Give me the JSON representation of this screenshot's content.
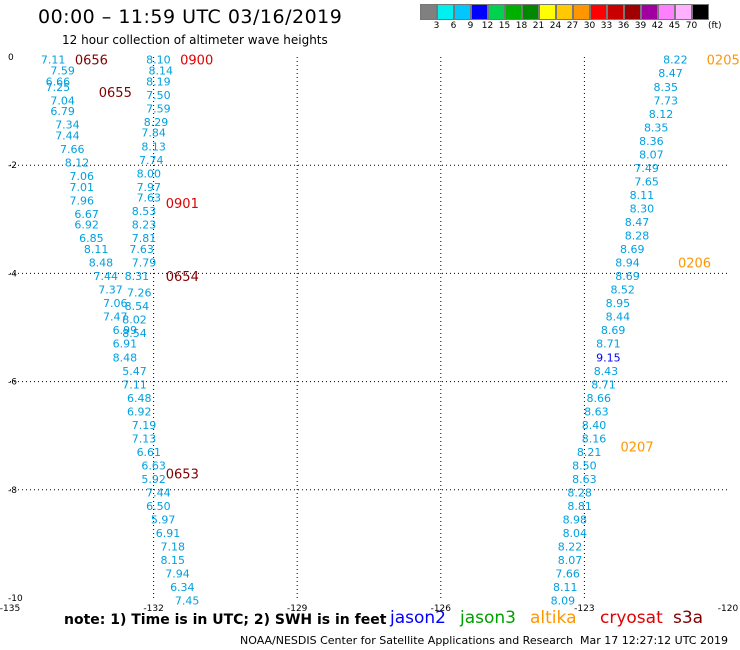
{
  "header": {
    "title": "00:00 – 11:59 UTC 03/16/2019",
    "subtitle": "12 hour collection of altimeter wave heights"
  },
  "colorbar": {
    "labels": [
      "3",
      "6",
      "9",
      "12",
      "15",
      "18",
      "21",
      "24",
      "27",
      "30",
      "33",
      "36",
      "39",
      "42",
      "45",
      "70"
    ],
    "unit": "(ft)",
    "colors": [
      "#808080",
      "#00f0f0",
      "#00c8ff",
      "#0000ff",
      "#00d250",
      "#00b000",
      "#008800",
      "#ffff00",
      "#ffc800",
      "#ff9600",
      "#ff0000",
      "#c80000",
      "#a00000",
      "#a000a0",
      "#ff80ff",
      "#ffb0ff",
      "#000000"
    ]
  },
  "axes": {
    "x_ticks": [
      "-135",
      "-132",
      "-129",
      "-126",
      "-123",
      "-120"
    ],
    "y_ticks": [
      "0",
      "-2",
      "-4",
      "-6",
      "-8",
      "-10"
    ]
  },
  "map_data": {
    "lon_range": [
      -135,
      -120
    ],
    "lat_range": [
      -10,
      0
    ],
    "tracks": [
      {
        "color": "#00a0e0",
        "points": [
          {
            "lon": -134.1,
            "lat": -0.05,
            "v": "7.11"
          },
          {
            "lon": -133.9,
            "lat": -0.25,
            "v": "7.59"
          },
          {
            "lon": -134.0,
            "lat": -0.45,
            "v": "6.66"
          },
          {
            "lon": -134.0,
            "lat": -0.55,
            "v": "7.25"
          },
          {
            "lon": -133.9,
            "lat": -0.8,
            "v": "7.04"
          },
          {
            "lon": -133.9,
            "lat": -1.0,
            "v": "6.79"
          },
          {
            "lon": -133.8,
            "lat": -1.25,
            "v": "7.34"
          },
          {
            "lon": -133.8,
            "lat": -1.45,
            "v": "7.44"
          },
          {
            "lon": -133.7,
            "lat": -1.7,
            "v": "7.66"
          },
          {
            "lon": -133.6,
            "lat": -1.95,
            "v": "8.12"
          },
          {
            "lon": -133.5,
            "lat": -2.2,
            "v": "7.06"
          },
          {
            "lon": -133.5,
            "lat": -2.4,
            "v": "7.01"
          },
          {
            "lon": -133.5,
            "lat": -2.65,
            "v": "7.96"
          },
          {
            "lon": -133.4,
            "lat": -2.9,
            "v": "6.67"
          },
          {
            "lon": -133.4,
            "lat": -3.1,
            "v": "6.92"
          },
          {
            "lon": -133.3,
            "lat": -3.35,
            "v": "6.85"
          },
          {
            "lon": -133.2,
            "lat": -3.55,
            "v": "8.11"
          },
          {
            "lon": -133.1,
            "lat": -3.8,
            "v": "8.48"
          },
          {
            "lon": -133.0,
            "lat": -4.05,
            "v": "7.44"
          },
          {
            "lon": -132.9,
            "lat": -4.3,
            "v": "7.37"
          },
          {
            "lon": -132.8,
            "lat": -4.55,
            "v": "7.06"
          },
          {
            "lon": -132.8,
            "lat": -4.8,
            "v": "7.47"
          },
          {
            "lon": -132.6,
            "lat": -5.05,
            "v": "6.99"
          },
          {
            "lon": -132.6,
            "lat": -5.3,
            "v": "6.91"
          },
          {
            "lon": -132.6,
            "lat": -5.55,
            "v": "8.48"
          },
          {
            "lon": -132.4,
            "lat": -5.8,
            "v": "5.47"
          },
          {
            "lon": -132.4,
            "lat": -6.05,
            "v": "7.11"
          },
          {
            "lon": -132.3,
            "lat": -6.3,
            "v": "6.48"
          },
          {
            "lon": -132.3,
            "lat": -6.55,
            "v": "6.92"
          },
          {
            "lon": -132.2,
            "lat": -6.8,
            "v": "7.19"
          },
          {
            "lon": -132.2,
            "lat": -7.05,
            "v": "7.13"
          },
          {
            "lon": -132.1,
            "lat": -7.3,
            "v": "6.61"
          },
          {
            "lon": -132.0,
            "lat": -7.55,
            "v": "6.63"
          },
          {
            "lon": -132.0,
            "lat": -7.8,
            "v": "5.92"
          },
          {
            "lon": -131.9,
            "lat": -8.05,
            "v": "7.44"
          },
          {
            "lon": -131.9,
            "lat": -8.3,
            "v": "6.50"
          },
          {
            "lon": -131.8,
            "lat": -8.55,
            "v": "5.97"
          },
          {
            "lon": -131.7,
            "lat": -8.8,
            "v": "6.91"
          },
          {
            "lon": -131.6,
            "lat": -9.05,
            "v": "7.18"
          },
          {
            "lon": -131.6,
            "lat": -9.3,
            "v": "8.15"
          },
          {
            "lon": -131.5,
            "lat": -9.55,
            "v": "7.94"
          },
          {
            "lon": -131.4,
            "lat": -9.8,
            "v": "6.34"
          },
          {
            "lon": -131.3,
            "lat": -10.05,
            "v": "7.45"
          }
        ]
      },
      {
        "color": "#00a0e0",
        "points": [
          {
            "lon": -131.9,
            "lat": -0.05,
            "v": "8.10"
          },
          {
            "lon": -131.85,
            "lat": -0.25,
            "v": "8.14"
          },
          {
            "lon": -131.9,
            "lat": -0.45,
            "v": "8.19"
          },
          {
            "lon": -131.9,
            "lat": -0.7,
            "v": "7.50"
          },
          {
            "lon": -131.9,
            "lat": -0.95,
            "v": "7.59"
          },
          {
            "lon": -131.95,
            "lat": -1.2,
            "v": "8.29"
          },
          {
            "lon": -132.0,
            "lat": -1.4,
            "v": "7.84"
          },
          {
            "lon": -132.0,
            "lat": -1.65,
            "v": "8.13"
          },
          {
            "lon": -132.05,
            "lat": -1.9,
            "v": "7.74"
          },
          {
            "lon": -132.1,
            "lat": -2.15,
            "v": "8.00"
          },
          {
            "lon": -132.1,
            "lat": -2.4,
            "v": "7.97"
          },
          {
            "lon": -132.1,
            "lat": -2.6,
            "v": "7.63"
          },
          {
            "lon": -132.2,
            "lat": -2.85,
            "v": "8.53"
          },
          {
            "lon": -132.2,
            "lat": -3.1,
            "v": "8.23"
          },
          {
            "lon": -132.2,
            "lat": -3.35,
            "v": "7.81"
          },
          {
            "lon": -132.25,
            "lat": -3.55,
            "v": "7.63"
          },
          {
            "lon": -132.2,
            "lat": -3.8,
            "v": "7.79"
          },
          {
            "lon": -132.35,
            "lat": -4.05,
            "v": "8.31"
          },
          {
            "lon": -132.3,
            "lat": -4.35,
            "v": "7.26"
          },
          {
            "lon": -132.35,
            "lat": -4.6,
            "v": "8.54"
          },
          {
            "lon": -132.4,
            "lat": -4.85,
            "v": "8.02"
          },
          {
            "lon": -132.4,
            "lat": -5.1,
            "v": "8.54"
          }
        ]
      },
      {
        "color": "#00a0e0",
        "points": [
          {
            "lon": -121.1,
            "lat": -0.05,
            "v": "8.22"
          },
          {
            "lon": -121.2,
            "lat": -0.3,
            "v": "8.47"
          },
          {
            "lon": -121.3,
            "lat": -0.55,
            "v": "8.35"
          },
          {
            "lon": -121.3,
            "lat": -0.8,
            "v": "7.73"
          },
          {
            "lon": -121.4,
            "lat": -1.05,
            "v": "8.12"
          },
          {
            "lon": -121.5,
            "lat": -1.3,
            "v": "8.35"
          },
          {
            "lon": -121.6,
            "lat": -1.55,
            "v": "8.36"
          },
          {
            "lon": -121.6,
            "lat": -1.8,
            "v": "8.07"
          },
          {
            "lon": -121.7,
            "lat": -2.05,
            "v": "7.49"
          },
          {
            "lon": -121.7,
            "lat": -2.3,
            "v": "7.65"
          },
          {
            "lon": -121.8,
            "lat": -2.55,
            "v": "8.11"
          },
          {
            "lon": -121.8,
            "lat": -2.8,
            "v": "8.30"
          },
          {
            "lon": -121.9,
            "lat": -3.05,
            "v": "8.47"
          },
          {
            "lon": -121.9,
            "lat": -3.3,
            "v": "8.28"
          },
          {
            "lon": -122.0,
            "lat": -3.55,
            "v": "8.69"
          },
          {
            "lon": -122.1,
            "lat": -3.8,
            "v": "8.94"
          },
          {
            "lon": -122.1,
            "lat": -4.05,
            "v": "8.69"
          },
          {
            "lon": -122.2,
            "lat": -4.3,
            "v": "8.52"
          },
          {
            "lon": -122.3,
            "lat": -4.55,
            "v": "8.95"
          },
          {
            "lon": -122.3,
            "lat": -4.8,
            "v": "8.44"
          },
          {
            "lon": -122.4,
            "lat": -5.05,
            "v": "8.69"
          },
          {
            "lon": -122.5,
            "lat": -5.3,
            "v": "8.71"
          },
          {
            "lon": -122.5,
            "lat": -5.55,
            "color": "#0000ff",
            "v": "9.15"
          },
          {
            "lon": -122.55,
            "lat": -5.8,
            "v": "8.43"
          },
          {
            "lon": -122.6,
            "lat": -6.05,
            "v": "8.71"
          },
          {
            "lon": -122.7,
            "lat": -6.3,
            "v": "8.66"
          },
          {
            "lon": -122.75,
            "lat": -6.55,
            "v": "8.63"
          },
          {
            "lon": -122.8,
            "lat": -6.8,
            "v": "8.40"
          },
          {
            "lon": -122.8,
            "lat": -7.05,
            "v": "8.16"
          },
          {
            "lon": -122.9,
            "lat": -7.3,
            "v": "8.21"
          },
          {
            "lon": -123.0,
            "lat": -7.55,
            "v": "8.50"
          },
          {
            "lon": -123.0,
            "lat": -7.8,
            "v": "8.63"
          },
          {
            "lon": -123.1,
            "lat": -8.05,
            "v": "8.28"
          },
          {
            "lon": -123.1,
            "lat": -8.3,
            "v": "8.81"
          },
          {
            "lon": -123.2,
            "lat": -8.55,
            "v": "8.98"
          },
          {
            "lon": -123.2,
            "lat": -8.8,
            "v": "8.04"
          },
          {
            "lon": -123.3,
            "lat": -9.05,
            "v": "8.22"
          },
          {
            "lon": -123.3,
            "lat": -9.3,
            "v": "8.07"
          },
          {
            "lon": -123.35,
            "lat": -9.55,
            "v": "7.66"
          },
          {
            "lon": -123.4,
            "lat": -9.8,
            "v": "8.11"
          },
          {
            "lon": -123.45,
            "lat": -10.05,
            "v": "8.09"
          }
        ]
      }
    ],
    "time_labels": [
      {
        "lon": -133.3,
        "lat": -0.05,
        "t": "0656",
        "color": "#800000"
      },
      {
        "lon": -132.8,
        "lat": -0.65,
        "t": "0655",
        "color": "#800000"
      },
      {
        "lon": -131.1,
        "lat": -0.05,
        "t": "0900",
        "color": "#e00000"
      },
      {
        "lon": -131.4,
        "lat": -2.7,
        "t": "0901",
        "color": "#e00000"
      },
      {
        "lon": -131.4,
        "lat": -4.05,
        "t": "0654",
        "color": "#800000"
      },
      {
        "lon": -131.4,
        "lat": -7.7,
        "t": "0653",
        "color": "#800000"
      },
      {
        "lon": -120.1,
        "lat": -0.05,
        "t": "0205",
        "color": "#ff9600"
      },
      {
        "lon": -120.7,
        "lat": -3.8,
        "t": "0206",
        "color": "#ff9600"
      },
      {
        "lon": -121.9,
        "lat": -7.2,
        "t": "0207",
        "color": "#ff9600"
      }
    ]
  },
  "note": "note:  1) Time is in UTC; 2) SWH is in feet",
  "satellites": [
    {
      "name": "jason2",
      "color": "#0000ff"
    },
    {
      "name": "jason3",
      "color": "#00a000"
    },
    {
      "name": "altika",
      "color": "#ff9600"
    },
    {
      "name": "cryosat",
      "color": "#e00000"
    },
    {
      "name": "s3a",
      "color": "#800000"
    }
  ],
  "footer": {
    "credit": "NOAA/NESDIS Center for Satellite Applications and Research",
    "timestamp": "Mar 17 12:27:12 UTC 2019"
  }
}
